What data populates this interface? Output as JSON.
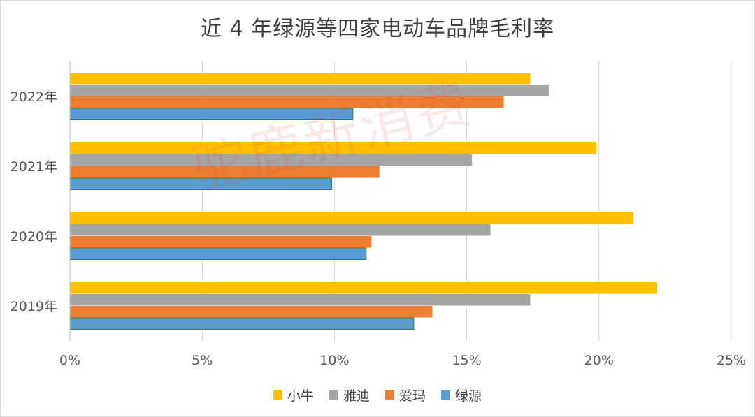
{
  "chart_data": {
    "type": "bar",
    "orientation": "horizontal",
    "title": "近 4 年绿源等四家电动车品牌毛利率",
    "categories": [
      "2022年",
      "2021年",
      "2020年",
      "2019年"
    ],
    "series": [
      {
        "name": "小牛",
        "color": "#FFC000",
        "values": [
          17.4,
          19.9,
          21.3,
          22.2
        ]
      },
      {
        "name": "雅迪",
        "color": "#A5A5A5",
        "values": [
          18.1,
          15.2,
          15.9,
          17.4
        ]
      },
      {
        "name": "爱玛",
        "color": "#ED7D31",
        "values": [
          16.4,
          11.7,
          11.4,
          13.7
        ]
      },
      {
        "name": "绿源",
        "color": "#5B9BD5",
        "values": [
          10.7,
          9.9,
          11.2,
          13.0
        ]
      }
    ],
    "xlim": [
      0,
      25
    ],
    "x_ticks": [
      "0%",
      "5%",
      "10%",
      "15%",
      "20%",
      "25%"
    ],
    "grid": true,
    "legend_position": "bottom"
  },
  "watermark": "驼鹿新消费"
}
